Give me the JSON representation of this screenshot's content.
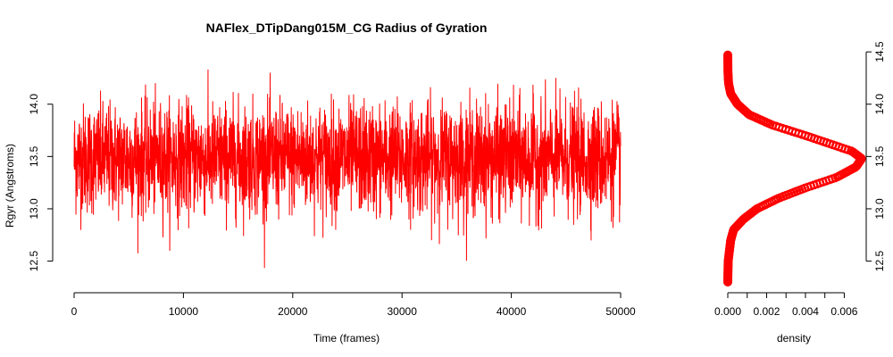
{
  "chart_data": [
    {
      "type": "line",
      "title": "NAFlex_DTipDang015M_CG Radius of Gyration",
      "xlabel": "Time (frames)",
      "ylabel": "Rgyr (Angstroms)",
      "xlim": [
        0,
        50000
      ],
      "ylim": [
        12.3,
        14.45
      ],
      "x_ticks": [
        0,
        10000,
        20000,
        30000,
        40000,
        50000
      ],
      "y_ticks": [
        12.5,
        13.0,
        13.5,
        14.0
      ],
      "color": "#ff0000",
      "grid": false,
      "series": [
        {
          "summary": {
            "mean": 13.48,
            "sd": 0.26,
            "min": 12.32,
            "max": 14.43,
            "n_frames": 50000
          }
        }
      ]
    },
    {
      "type": "line",
      "xlabel": "density",
      "orientation": "horizontal-density",
      "xlim": [
        0,
        0.0069
      ],
      "ylim": [
        12.3,
        14.45
      ],
      "x_ticks": [
        "0.000",
        "0.002",
        "0.004",
        "0.006"
      ],
      "y_ticks": [
        12.5,
        13.0,
        13.5,
        14.0,
        14.5
      ],
      "color": "#ff0000",
      "grid": false,
      "series": [
        {
          "points": [
            {
              "rgyr": 12.3,
              "density": 0.0
            },
            {
              "rgyr": 12.5,
              "density": 2e-05
            },
            {
              "rgyr": 12.7,
              "density": 0.00015
            },
            {
              "rgyr": 12.8,
              "density": 0.0003
            },
            {
              "rgyr": 12.9,
              "density": 0.0008
            },
            {
              "rgyr": 13.0,
              "density": 0.0015
            },
            {
              "rgyr": 13.1,
              "density": 0.0026
            },
            {
              "rgyr": 13.2,
              "density": 0.004
            },
            {
              "rgyr": 13.3,
              "density": 0.0056
            },
            {
              "rgyr": 13.4,
              "density": 0.0066
            },
            {
              "rgyr": 13.48,
              "density": 0.0069
            },
            {
              "rgyr": 13.55,
              "density": 0.0064
            },
            {
              "rgyr": 13.6,
              "density": 0.0056
            },
            {
              "rgyr": 13.7,
              "density": 0.004
            },
            {
              "rgyr": 13.8,
              "density": 0.0023
            },
            {
              "rgyr": 13.9,
              "density": 0.0011
            },
            {
              "rgyr": 14.0,
              "density": 0.0005
            },
            {
              "rgyr": 14.1,
              "density": 0.00015
            },
            {
              "rgyr": 14.2,
              "density": 4e-05
            },
            {
              "rgyr": 14.3,
              "density": 1e-05
            },
            {
              "rgyr": 14.47,
              "density": 0.0
            }
          ]
        }
      ]
    }
  ]
}
